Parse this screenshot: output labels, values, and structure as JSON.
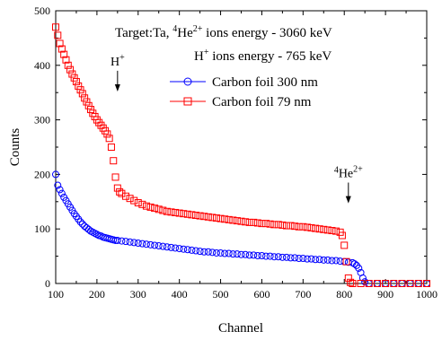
{
  "chart_data": {
    "type": "scatter",
    "xlabel": "Channel",
    "ylabel": "Counts",
    "xlim": [
      100,
      1000
    ],
    "ylim": [
      0,
      500
    ],
    "xticks": [
      100,
      200,
      300,
      400,
      500,
      600,
      700,
      800,
      900,
      1000
    ],
    "yticks": [
      0,
      100,
      200,
      300,
      400,
      500
    ],
    "grid": false,
    "legend_position": "top-right",
    "annotations": {
      "line1_prefix": "Target:Ta, ",
      "line1_mass": "4",
      "line1_ion": "He",
      "line1_charge": "2+",
      "line1_suffix": " ions energy - 3060 keV",
      "line2_ion": "H",
      "line2_charge": "+",
      "line2_suffix": " ions energy - 765 keV"
    },
    "arrows": [
      {
        "x": 250,
        "y": 390,
        "y_to": 352,
        "label_ion": "H",
        "label_charge": "+",
        "label_mass": ""
      },
      {
        "x": 810,
        "y": 185,
        "y_to": 147,
        "label_ion": "He",
        "label_charge": "2+",
        "label_mass": "4"
      }
    ],
    "series": [
      {
        "name": "Carbon foil 300 nm",
        "color": "#0000ff",
        "marker": "circle",
        "points": [
          [
            100,
            200
          ],
          [
            105,
            180
          ],
          [
            110,
            172
          ],
          [
            115,
            165
          ],
          [
            120,
            158
          ],
          [
            125,
            152
          ],
          [
            130,
            146
          ],
          [
            135,
            140
          ],
          [
            140,
            134
          ],
          [
            145,
            128
          ],
          [
            150,
            123
          ],
          [
            155,
            118
          ],
          [
            160,
            113
          ],
          [
            165,
            109
          ],
          [
            170,
            105
          ],
          [
            175,
            102
          ],
          [
            180,
            99
          ],
          [
            185,
            96
          ],
          [
            190,
            94
          ],
          [
            195,
            92
          ],
          [
            200,
            90
          ],
          [
            205,
            88
          ],
          [
            210,
            87
          ],
          [
            215,
            85
          ],
          [
            220,
            84
          ],
          [
            225,
            83
          ],
          [
            230,
            82
          ],
          [
            235,
            81
          ],
          [
            240,
            80
          ],
          [
            245,
            79
          ],
          [
            250,
            79
          ],
          [
            260,
            78
          ],
          [
            270,
            77
          ],
          [
            280,
            76
          ],
          [
            290,
            75
          ],
          [
            300,
            74
          ],
          [
            310,
            73
          ],
          [
            320,
            72
          ],
          [
            330,
            71
          ],
          [
            340,
            70
          ],
          [
            350,
            69
          ],
          [
            360,
            68
          ],
          [
            370,
            67
          ],
          [
            380,
            66
          ],
          [
            390,
            65
          ],
          [
            400,
            64
          ],
          [
            410,
            63
          ],
          [
            420,
            62
          ],
          [
            430,
            61
          ],
          [
            440,
            60
          ],
          [
            450,
            59
          ],
          [
            460,
            58
          ],
          [
            470,
            58
          ],
          [
            480,
            57
          ],
          [
            490,
            56
          ],
          [
            500,
            56
          ],
          [
            510,
            55
          ],
          [
            520,
            55
          ],
          [
            530,
            54
          ],
          [
            540,
            54
          ],
          [
            550,
            53
          ],
          [
            560,
            53
          ],
          [
            570,
            52
          ],
          [
            580,
            52
          ],
          [
            590,
            51
          ],
          [
            600,
            51
          ],
          [
            610,
            50
          ],
          [
            620,
            50
          ],
          [
            630,
            49
          ],
          [
            640,
            49
          ],
          [
            650,
            48
          ],
          [
            660,
            48
          ],
          [
            670,
            47
          ],
          [
            680,
            47
          ],
          [
            690,
            46
          ],
          [
            700,
            46
          ],
          [
            710,
            45
          ],
          [
            720,
            45
          ],
          [
            730,
            44
          ],
          [
            740,
            44
          ],
          [
            750,
            43
          ],
          [
            760,
            43
          ],
          [
            770,
            42
          ],
          [
            780,
            42
          ],
          [
            790,
            41
          ],
          [
            800,
            40
          ],
          [
            810,
            39
          ],
          [
            820,
            38
          ],
          [
            825,
            36
          ],
          [
            830,
            33
          ],
          [
            835,
            28
          ],
          [
            840,
            20
          ],
          [
            845,
            10
          ],
          [
            850,
            3
          ],
          [
            860,
            0
          ],
          [
            880,
            0
          ],
          [
            900,
            0
          ],
          [
            920,
            0
          ],
          [
            940,
            0
          ],
          [
            960,
            0
          ],
          [
            980,
            0
          ],
          [
            1000,
            0
          ]
        ]
      },
      {
        "name": "Carbon foil 79 nm",
        "color": "#ff0000",
        "marker": "square",
        "points": [
          [
            100,
            470
          ],
          [
            105,
            455
          ],
          [
            110,
            440
          ],
          [
            115,
            430
          ],
          [
            120,
            420
          ],
          [
            125,
            410
          ],
          [
            130,
            400
          ],
          [
            135,
            392
          ],
          [
            140,
            384
          ],
          [
            145,
            377
          ],
          [
            150,
            370
          ],
          [
            155,
            362
          ],
          [
            160,
            355
          ],
          [
            165,
            348
          ],
          [
            170,
            340
          ],
          [
            175,
            333
          ],
          [
            180,
            326
          ],
          [
            185,
            319
          ],
          [
            190,
            312
          ],
          [
            195,
            306
          ],
          [
            200,
            300
          ],
          [
            205,
            295
          ],
          [
            210,
            290
          ],
          [
            215,
            285
          ],
          [
            220,
            280
          ],
          [
            225,
            274
          ],
          [
            230,
            266
          ],
          [
            235,
            250
          ],
          [
            240,
            225
          ],
          [
            245,
            195
          ],
          [
            250,
            175
          ],
          [
            255,
            168
          ],
          [
            260,
            165
          ],
          [
            270,
            160
          ],
          [
            280,
            156
          ],
          [
            290,
            152
          ],
          [
            300,
            148
          ],
          [
            310,
            145
          ],
          [
            320,
            142
          ],
          [
            330,
            140
          ],
          [
            340,
            138
          ],
          [
            350,
            136
          ],
          [
            360,
            134
          ],
          [
            370,
            132
          ],
          [
            380,
            131
          ],
          [
            390,
            130
          ],
          [
            400,
            129
          ],
          [
            410,
            128
          ],
          [
            420,
            127
          ],
          [
            430,
            126
          ],
          [
            440,
            125
          ],
          [
            450,
            124
          ],
          [
            460,
            123
          ],
          [
            470,
            122
          ],
          [
            480,
            121
          ],
          [
            490,
            120
          ],
          [
            500,
            119
          ],
          [
            510,
            118
          ],
          [
            520,
            117
          ],
          [
            530,
            116
          ],
          [
            540,
            115
          ],
          [
            550,
            114
          ],
          [
            560,
            113
          ],
          [
            570,
            112
          ],
          [
            580,
            112
          ],
          [
            590,
            111
          ],
          [
            600,
            110
          ],
          [
            610,
            110
          ],
          [
            620,
            109
          ],
          [
            630,
            108
          ],
          [
            640,
            108
          ],
          [
            650,
            107
          ],
          [
            660,
            106
          ],
          [
            670,
            106
          ],
          [
            680,
            105
          ],
          [
            690,
            104
          ],
          [
            700,
            104
          ],
          [
            710,
            103
          ],
          [
            720,
            102
          ],
          [
            730,
            101
          ],
          [
            740,
            100
          ],
          [
            750,
            99
          ],
          [
            760,
            98
          ],
          [
            770,
            97
          ],
          [
            780,
            96
          ],
          [
            790,
            94
          ],
          [
            795,
            88
          ],
          [
            800,
            70
          ],
          [
            805,
            40
          ],
          [
            810,
            10
          ],
          [
            815,
            2
          ],
          [
            820,
            0
          ],
          [
            840,
            0
          ],
          [
            860,
            0
          ],
          [
            880,
            0
          ],
          [
            900,
            0
          ],
          [
            920,
            0
          ],
          [
            940,
            0
          ],
          [
            960,
            0
          ],
          [
            980,
            0
          ],
          [
            1000,
            0
          ]
        ]
      }
    ]
  }
}
